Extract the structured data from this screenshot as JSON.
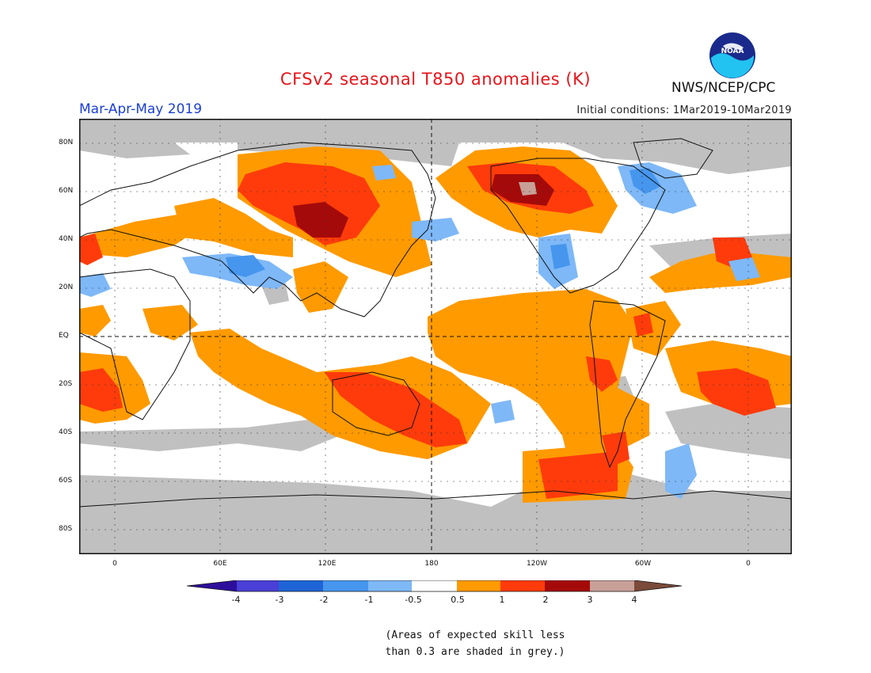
{
  "header": {
    "title": "CFSv2 seasonal T850 anomalies (K)",
    "season": "Mar-Apr-May 2019",
    "initial_conditions": "Initial conditions: 1Mar2019-10Mar2019",
    "agency": "NWS/NCEP/CPC",
    "logo_text": "NOAA"
  },
  "map": {
    "projection": "equirectangular",
    "lon_range": [
      -20,
      380
    ],
    "lat_range": [
      -90,
      90
    ],
    "lat_ticks": [
      "80N",
      "60N",
      "40N",
      "20N",
      "EQ",
      "20S",
      "40S",
      "60S",
      "80S"
    ],
    "lon_ticks": [
      "0",
      "60E",
      "120E",
      "180",
      "120W",
      "60W",
      "0"
    ],
    "grid": "dotted",
    "colors": {
      "land_outline": "#111111",
      "low_skill": "#c0c0c0",
      "pos_0_5_1": "#ff9a00",
      "pos_1_2": "#ff3b0b",
      "pos_2_3": "#a50a0a",
      "pos_3_4": "#c8a097",
      "neg_0_5_1": "#7eb8f7",
      "neg_1_2": "#4696ee"
    }
  },
  "colorbar": {
    "labels": [
      "-4",
      "-3",
      "-2",
      "-1",
      "-0.5",
      "0.5",
      "1",
      "2",
      "3",
      "4"
    ],
    "colors": [
      "#2d0e9c",
      "#4a3fd6",
      "#1f64d6",
      "#4696ee",
      "#7eb8f7",
      "#ffffff",
      "#ff9a00",
      "#ff3b0b",
      "#a50a0a",
      "#c8a097",
      "#7a4a3a"
    ]
  },
  "footnote": {
    "line1": "(Areas of expected skill less",
    "line2": "than 0.3 are shaded in grey.)"
  }
}
